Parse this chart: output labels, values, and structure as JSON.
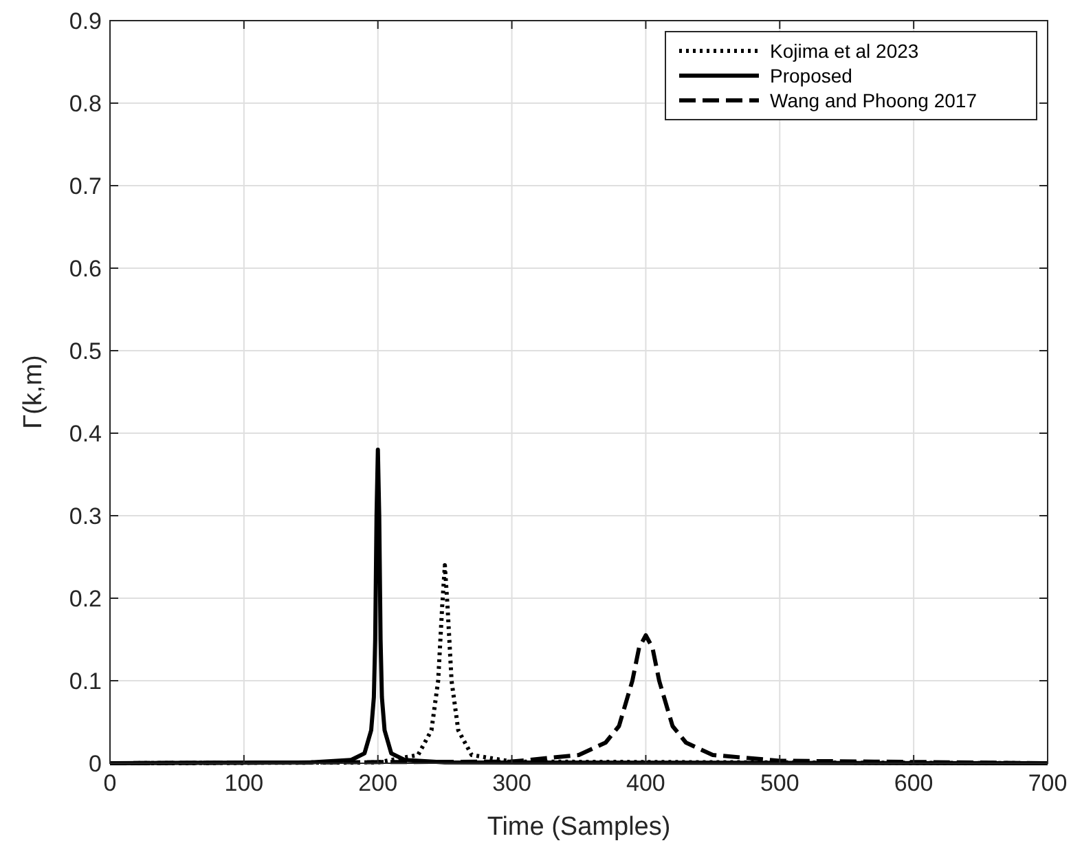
{
  "chart_data": {
    "type": "line",
    "xlabel": "Time (Samples)",
    "ylabel": "Γ(k,m)",
    "xlim": [
      0,
      700
    ],
    "xticks": [
      0,
      100,
      200,
      300,
      400,
      500,
      600,
      700
    ],
    "ylim": [
      0,
      0.9
    ],
    "yticks": [
      0,
      0.1,
      0.2,
      0.3,
      0.4,
      0.5,
      0.6,
      0.7,
      0.8,
      0.9
    ],
    "grid": true,
    "legend": "top right",
    "series": [
      {
        "name": "Kojima et al 2023",
        "color": "#000000",
        "line_style": "dotted",
        "x": [
          0,
          200,
          230,
          240,
          245,
          248,
          250,
          252,
          255,
          260,
          270,
          300,
          700
        ],
        "values": [
          0,
          0.001,
          0.01,
          0.04,
          0.1,
          0.19,
          0.24,
          0.19,
          0.1,
          0.04,
          0.01,
          0.002,
          0
        ]
      },
      {
        "name": "Proposed",
        "color": "#000000",
        "line_style": "solid",
        "x": [
          0,
          150,
          180,
          190,
          195,
          197,
          198,
          199,
          200,
          201,
          202,
          203,
          205,
          210,
          220,
          250,
          700
        ],
        "values": [
          0,
          0.001,
          0.004,
          0.012,
          0.04,
          0.08,
          0.15,
          0.3,
          0.38,
          0.3,
          0.15,
          0.08,
          0.04,
          0.012,
          0.004,
          0.001,
          0
        ]
      },
      {
        "name": "Wang and Phoong 2017",
        "color": "#000000",
        "line_style": "dashed",
        "x": [
          0,
          300,
          350,
          370,
          380,
          390,
          395,
          400,
          405,
          410,
          420,
          430,
          450,
          500,
          700
        ],
        "values": [
          0,
          0.002,
          0.01,
          0.025,
          0.045,
          0.1,
          0.14,
          0.155,
          0.14,
          0.1,
          0.045,
          0.025,
          0.01,
          0.003,
          0
        ]
      }
    ]
  }
}
